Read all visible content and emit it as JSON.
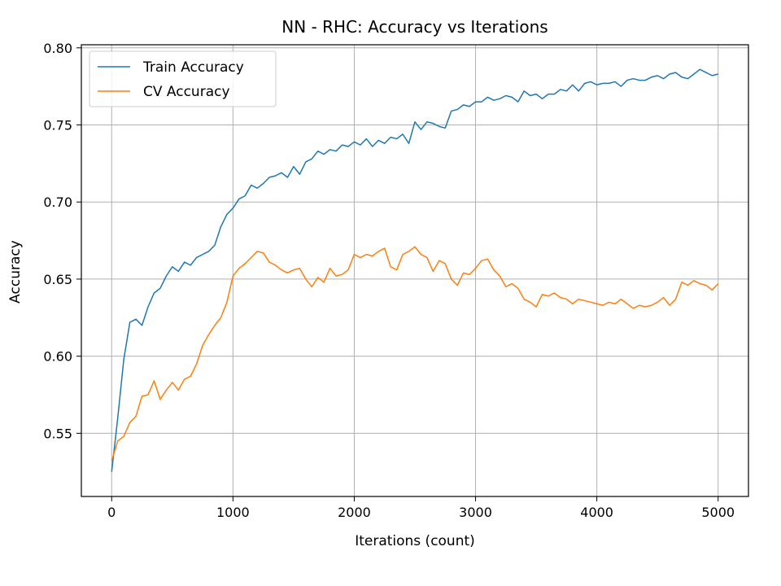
{
  "chart_data": {
    "type": "line",
    "title": "NN - RHC: Accuracy vs Iterations",
    "xlabel": "Iterations (count)",
    "ylabel": "Accuracy",
    "xlim": [
      -250,
      5250
    ],
    "ylim": [
      0.509,
      0.802
    ],
    "xticks": [
      0,
      1000,
      2000,
      3000,
      4000,
      5000
    ],
    "xtick_labels": [
      "0",
      "1000",
      "2000",
      "3000",
      "4000",
      "5000"
    ],
    "yticks": [
      0.55,
      0.6,
      0.65,
      0.7,
      0.75,
      0.8
    ],
    "ytick_labels": [
      "0.55",
      "0.60",
      "0.65",
      "0.70",
      "0.75",
      "0.80"
    ],
    "grid": true,
    "legend_position": "top-left",
    "x": [
      0,
      50,
      100,
      150,
      200,
      250,
      300,
      350,
      400,
      450,
      500,
      550,
      600,
      650,
      700,
      750,
      800,
      850,
      900,
      950,
      1000,
      1050,
      1100,
      1150,
      1200,
      1250,
      1300,
      1350,
      1400,
      1450,
      1500,
      1550,
      1600,
      1650,
      1700,
      1750,
      1800,
      1850,
      1900,
      1950,
      2000,
      2050,
      2100,
      2150,
      2200,
      2250,
      2300,
      2350,
      2400,
      2450,
      2500,
      2550,
      2600,
      2650,
      2700,
      2750,
      2800,
      2850,
      2900,
      2950,
      3000,
      3050,
      3100,
      3150,
      3200,
      3250,
      3300,
      3350,
      3400,
      3450,
      3500,
      3550,
      3600,
      3650,
      3700,
      3750,
      3800,
      3850,
      3900,
      3950,
      4000,
      4050,
      4100,
      4150,
      4200,
      4250,
      4300,
      4350,
      4400,
      4450,
      4500,
      4550,
      4600,
      4650,
      4700,
      4750,
      4800,
      4850,
      4900,
      4950,
      5000
    ],
    "series": [
      {
        "name": "Train Accuracy",
        "color": "#1f77b4",
        "values": [
          0.525,
          0.56,
          0.598,
          0.622,
          0.624,
          0.62,
          0.632,
          0.641,
          0.644,
          0.652,
          0.658,
          0.655,
          0.661,
          0.659,
          0.664,
          0.666,
          0.668,
          0.672,
          0.684,
          0.692,
          0.696,
          0.702,
          0.704,
          0.711,
          0.709,
          0.712,
          0.716,
          0.717,
          0.719,
          0.716,
          0.723,
          0.718,
          0.726,
          0.728,
          0.733,
          0.731,
          0.734,
          0.733,
          0.737,
          0.736,
          0.739,
          0.737,
          0.741,
          0.736,
          0.74,
          0.738,
          0.742,
          0.741,
          0.744,
          0.738,
          0.752,
          0.747,
          0.752,
          0.751,
          0.749,
          0.748,
          0.759,
          0.76,
          0.763,
          0.762,
          0.765,
          0.765,
          0.768,
          0.766,
          0.767,
          0.769,
          0.768,
          0.765,
          0.772,
          0.769,
          0.77,
          0.767,
          0.77,
          0.77,
          0.773,
          0.772,
          0.776,
          0.772,
          0.777,
          0.778,
          0.776,
          0.777,
          0.777,
          0.778,
          0.775,
          0.779,
          0.78,
          0.779,
          0.779,
          0.781,
          0.782,
          0.78,
          0.783,
          0.784,
          0.781,
          0.78,
          0.783,
          0.786,
          0.784,
          0.782,
          0.783
        ]
      },
      {
        "name": "CV Accuracy",
        "color": "#ff7f0e",
        "values": [
          0.532,
          0.545,
          0.548,
          0.557,
          0.561,
          0.574,
          0.575,
          0.584,
          0.572,
          0.578,
          0.583,
          0.578,
          0.585,
          0.587,
          0.595,
          0.607,
          0.614,
          0.62,
          0.625,
          0.635,
          0.652,
          0.657,
          0.66,
          0.664,
          0.668,
          0.667,
          0.661,
          0.659,
          0.656,
          0.654,
          0.656,
          0.657,
          0.65,
          0.645,
          0.651,
          0.648,
          0.657,
          0.652,
          0.653,
          0.656,
          0.666,
          0.664,
          0.666,
          0.665,
          0.668,
          0.67,
          0.658,
          0.656,
          0.666,
          0.668,
          0.671,
          0.666,
          0.664,
          0.655,
          0.662,
          0.66,
          0.65,
          0.646,
          0.654,
          0.653,
          0.657,
          0.662,
          0.663,
          0.656,
          0.652,
          0.645,
          0.647,
          0.644,
          0.637,
          0.635,
          0.632,
          0.64,
          0.639,
          0.641,
          0.638,
          0.637,
          0.634,
          0.637,
          0.636,
          0.635,
          0.634,
          0.633,
          0.635,
          0.634,
          0.637,
          0.634,
          0.631,
          0.633,
          0.632,
          0.633,
          0.635,
          0.638,
          0.633,
          0.637,
          0.648,
          0.646,
          0.649,
          0.647,
          0.646,
          0.643,
          0.647
        ]
      }
    ]
  }
}
